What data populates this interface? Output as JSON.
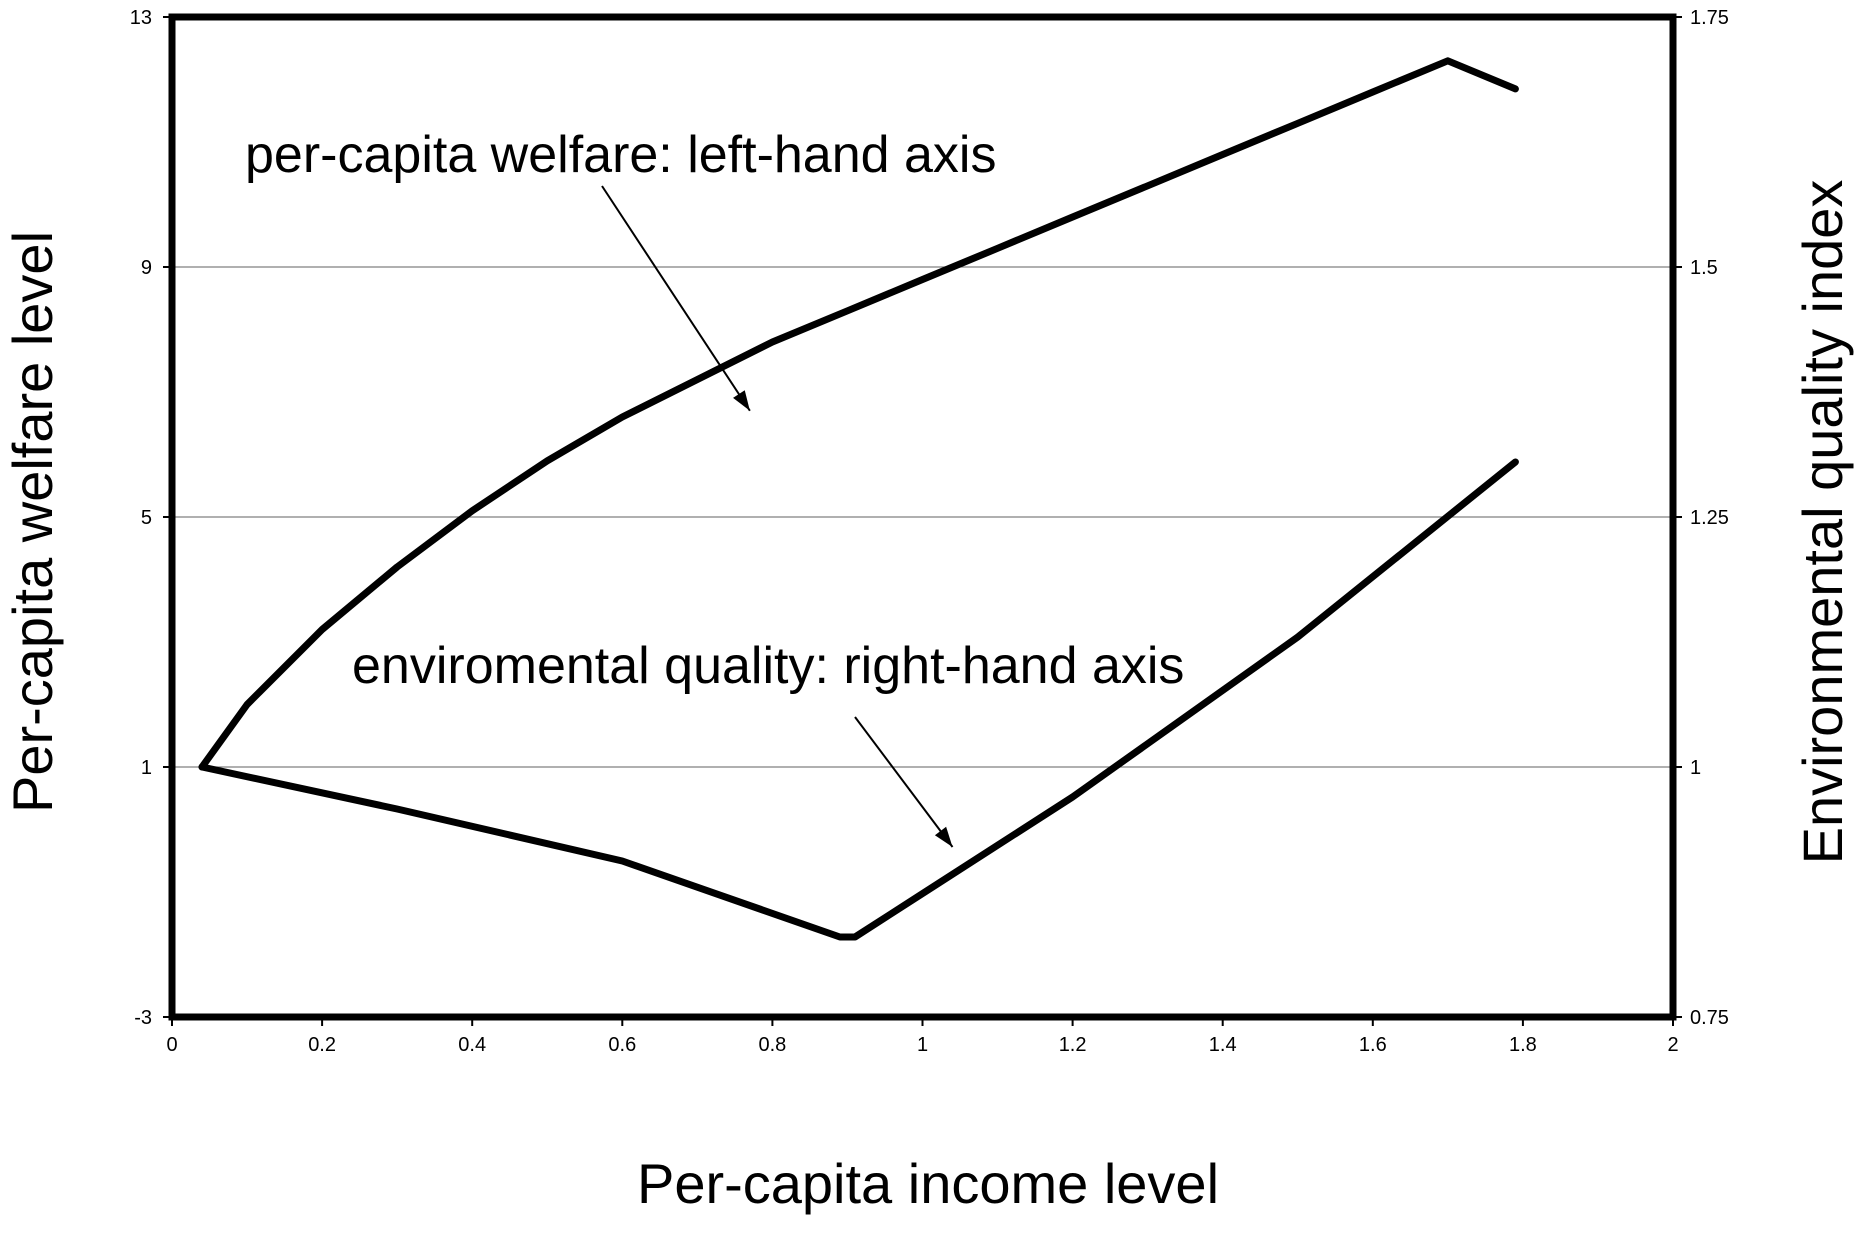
{
  "chart_data": {
    "type": "line",
    "xlabel": "Per-capita income level",
    "ylabel_left": "Per-capita welfare level",
    "ylabel_right": "Environmental quality index",
    "xlim": [
      0,
      2
    ],
    "ylim_left": [
      -3,
      13
    ],
    "ylim_right": [
      0.75,
      1.75
    ],
    "x_ticks": [
      "0",
      "0.2",
      "0.4",
      "0.6",
      "0.8",
      "1",
      "1.2",
      "1.4",
      "1.6",
      "1.8",
      "2"
    ],
    "y_left_ticks": [
      "-3",
      "1",
      "5",
      "9",
      "13"
    ],
    "y_right_ticks": [
      "0.75",
      "1",
      "1.25",
      "1.5",
      "1.75"
    ],
    "grid": "horizontal",
    "series": [
      {
        "name": "per-capita welfare",
        "axis": "left",
        "x": [
          0.04,
          0.1,
          0.2,
          0.3,
          0.4,
          0.5,
          0.6,
          0.7,
          0.8,
          0.9,
          1.0,
          1.1,
          1.2,
          1.3,
          1.4,
          1.5,
          1.6,
          1.7,
          1.79
        ],
        "y": [
          1.0,
          2.0,
          3.2,
          4.2,
          5.1,
          5.9,
          6.6,
          7.2,
          7.8,
          8.3,
          8.8,
          9.3,
          9.8,
          10.3,
          10.8,
          11.3,
          11.8,
          12.3,
          11.85
        ]
      },
      {
        "name": "environmental quality",
        "axis": "right",
        "x": [
          0.04,
          0.3,
          0.6,
          0.89,
          0.91,
          1.2,
          1.5,
          1.79
        ],
        "y": [
          1.0,
          0.958,
          0.906,
          0.83,
          0.83,
          0.97,
          1.13,
          1.305
        ]
      }
    ],
    "annotations": [
      {
        "text": "per-capita welfare: left-hand axis",
        "points_to": {
          "x": 0.77,
          "y": 6.7,
          "axis": "left"
        }
      },
      {
        "text": "enviromental quality: right-hand axis",
        "points_to": {
          "x": 1.04,
          "y": 0.92,
          "axis": "right"
        }
      }
    ]
  }
}
